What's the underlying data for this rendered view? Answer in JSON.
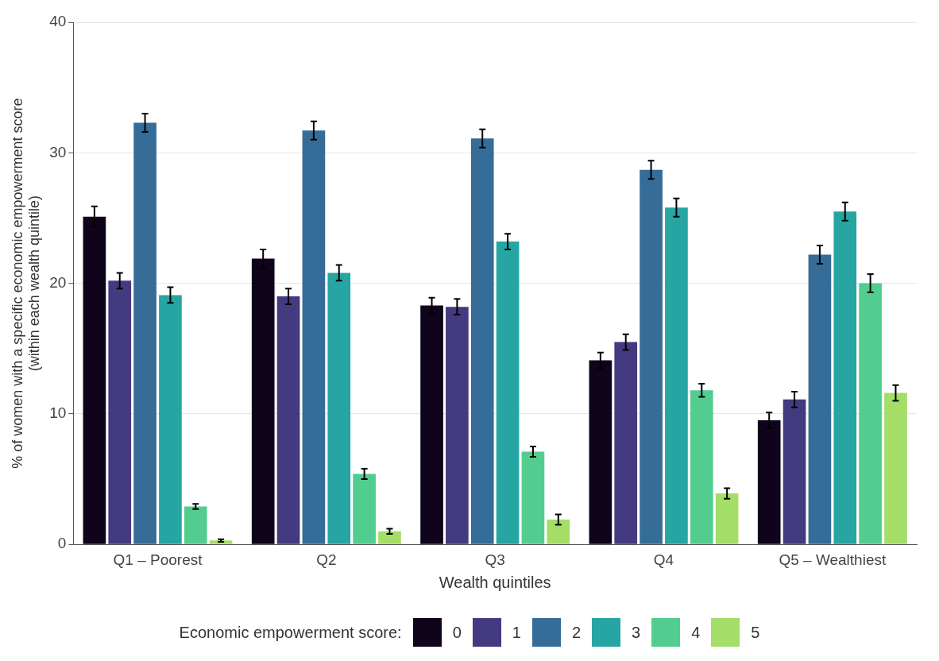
{
  "chart_data": {
    "type": "bar",
    "xlabel": "Wealth quintiles",
    "ylabel": "% of women with a specific economic empowerment score\n(within each wealth quintile)",
    "legend_title": "Economic empowerment score:",
    "categories": [
      "Q1 – Poorest",
      "Q2",
      "Q3",
      "Q4",
      "Q5 – Wealthiest"
    ],
    "series": [
      {
        "name": "0",
        "color": "#10041c",
        "values": [
          25.1,
          21.9,
          18.3,
          14.1,
          9.5
        ],
        "errors": [
          0.8,
          0.7,
          0.6,
          0.6,
          0.6
        ]
      },
      {
        "name": "1",
        "color": "#433a80",
        "values": [
          20.2,
          19.0,
          18.2,
          15.5,
          11.1
        ],
        "errors": [
          0.6,
          0.6,
          0.6,
          0.6,
          0.6
        ]
      },
      {
        "name": "2",
        "color": "#356c98",
        "values": [
          32.3,
          31.7,
          31.1,
          28.7,
          22.2
        ],
        "errors": [
          0.7,
          0.7,
          0.7,
          0.7,
          0.7
        ]
      },
      {
        "name": "3",
        "color": "#26a5a2",
        "values": [
          19.1,
          20.8,
          23.2,
          25.8,
          25.5
        ],
        "errors": [
          0.6,
          0.6,
          0.6,
          0.7,
          0.7
        ]
      },
      {
        "name": "4",
        "color": "#53cd8f",
        "values": [
          2.9,
          5.4,
          7.1,
          11.8,
          20.0
        ],
        "errors": [
          0.2,
          0.4,
          0.4,
          0.5,
          0.7
        ]
      },
      {
        "name": "5",
        "color": "#a4dd67",
        "values": [
          0.3,
          1.0,
          1.9,
          3.9,
          11.6
        ],
        "errors": [
          0.1,
          0.2,
          0.4,
          0.4,
          0.6
        ]
      }
    ],
    "ylim": [
      0,
      40
    ],
    "yticks": [
      0,
      10,
      20,
      30,
      40
    ],
    "grid": "y",
    "legend": "bottom"
  }
}
